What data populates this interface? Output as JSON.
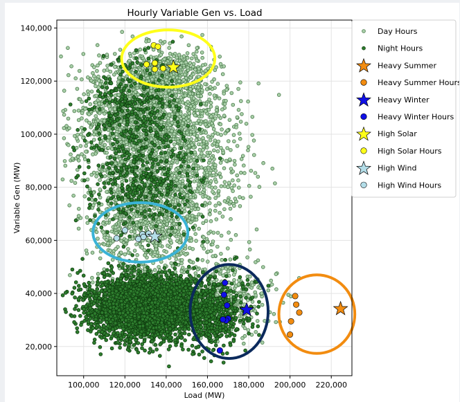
{
  "colors": {
    "day_fill": "#a9cfa9",
    "day_edge": "#4a7a4a",
    "night_fill": "#2e7d2e",
    "night_edge": "#0f3d0f",
    "summer": "#f28c10",
    "winter": "#1010e6",
    "solar": "#ffff1a",
    "wind": "#b3dde8",
    "winter_ring": "#0b2a5c",
    "wind_ring": "#3ab3d6",
    "grid": "#e3e3e3"
  },
  "chart_data": {
    "type": "scatter",
    "title": "Hourly Variable Gen vs. Load",
    "xlabel": "Load (MW)",
    "ylabel": "Variable Gen (MW)",
    "xlim": [
      87000,
      230000
    ],
    "ylim": [
      9000,
      143000
    ],
    "x_tick_labels": [
      "100,000",
      "120,000",
      "140,000",
      "160,000",
      "180,000",
      "200,000",
      "220,000"
    ],
    "x_tick_values": [
      100000,
      120000,
      140000,
      160000,
      180000,
      200000,
      220000
    ],
    "y_tick_labels": [
      "20,000",
      "40,000",
      "60,000",
      "80,000",
      "100,000",
      "120,000",
      "140,000"
    ],
    "y_tick_values": [
      20000,
      40000,
      60000,
      80000,
      100000,
      120000,
      140000
    ],
    "grid": true,
    "legend_position": "outside-right",
    "legend": [
      {
        "label": "Day Hours",
        "marker": "circle-small",
        "color_key": "day_fill",
        "edge_key": "day_edge"
      },
      {
        "label": "Night Hours",
        "marker": "circle-small",
        "color_key": "night_fill",
        "edge_key": "night_edge"
      },
      {
        "label": "Heavy Summer",
        "marker": "star",
        "color_key": "summer"
      },
      {
        "label": "Heavy Summer Hours",
        "marker": "circle",
        "color_key": "summer"
      },
      {
        "label": "Heavy Winter",
        "marker": "star",
        "color_key": "winter"
      },
      {
        "label": "Heavy Winter Hours",
        "marker": "circle",
        "color_key": "winter"
      },
      {
        "label": "High Solar",
        "marker": "star",
        "color_key": "solar"
      },
      {
        "label": "High Solar Hours",
        "marker": "circle",
        "color_key": "solar"
      },
      {
        "label": "High Wind",
        "marker": "star",
        "color_key": "wind"
      },
      {
        "label": "High Wind Hours",
        "marker": "circle",
        "color_key": "wind"
      }
    ],
    "clusters": {
      "day": [
        {
          "cx": 128000,
          "cy": 103000,
          "sx": 16000,
          "sy": 13000,
          "n": 1500
        },
        {
          "cx": 140000,
          "cy": 121000,
          "sx": 11000,
          "sy": 6000,
          "n": 500
        },
        {
          "cx": 152000,
          "cy": 92000,
          "sx": 14000,
          "sy": 17000,
          "n": 700
        },
        {
          "cx": 130000,
          "cy": 68000,
          "sx": 15000,
          "sy": 8500,
          "n": 700
        },
        {
          "cx": 168000,
          "cy": 40000,
          "sx": 12000,
          "sy": 8000,
          "n": 350
        },
        {
          "cx": 135000,
          "cy": 40000,
          "sx": 14000,
          "sy": 8000,
          "n": 300
        }
      ],
      "night": [
        {
          "cx": 130000,
          "cy": 35000,
          "sx": 13500,
          "sy": 6000,
          "n": 3200
        },
        {
          "cx": 162000,
          "cy": 32000,
          "sx": 9000,
          "sy": 6500,
          "n": 500
        },
        {
          "cx": 128000,
          "cy": 82000,
          "sx": 13000,
          "sy": 11000,
          "n": 400
        },
        {
          "cx": 125000,
          "cy": 110000,
          "sx": 11000,
          "sy": 9000,
          "n": 300
        }
      ]
    },
    "stars": [
      {
        "name": "Heavy Summer",
        "x": 224500,
        "y": 34200,
        "color_key": "summer"
      },
      {
        "name": "Heavy Winter",
        "x": 179000,
        "y": 33800,
        "color_key": "winter"
      },
      {
        "name": "High Solar",
        "x": 143500,
        "y": 125200,
        "color_key": "solar"
      },
      {
        "name": "High Wind",
        "x": 134500,
        "y": 61500,
        "color_key": "wind"
      }
    ],
    "hour_points": [
      {
        "series": "Heavy Summer Hours",
        "color_key": "summer",
        "points": [
          [
            202500,
            39000
          ],
          [
            203000,
            35800
          ],
          [
            204500,
            32800
          ],
          [
            200500,
            29500
          ],
          [
            200000,
            24500
          ]
        ]
      },
      {
        "series": "Heavy Winter Hours",
        "color_key": "winter",
        "points": [
          [
            168500,
            44000
          ],
          [
            168000,
            39500
          ],
          [
            169500,
            35500
          ],
          [
            170000,
            30500
          ],
          [
            169000,
            29800
          ],
          [
            167500,
            30200
          ],
          [
            166000,
            18500
          ]
        ]
      },
      {
        "series": "High Solar Hours",
        "color_key": "solar",
        "points": [
          [
            134000,
            133500
          ],
          [
            136000,
            133000
          ],
          [
            134500,
            126800
          ],
          [
            130500,
            126300
          ],
          [
            134500,
            124500
          ],
          [
            138500,
            124800
          ]
        ]
      },
      {
        "series": "High Wind Hours",
        "color_key": "wind",
        "points": [
          [
            120000,
            63800
          ],
          [
            116000,
            60800
          ],
          [
            126500,
            60500
          ],
          [
            128500,
            62300
          ],
          [
            131500,
            62500
          ],
          [
            129000,
            61300
          ]
        ]
      }
    ],
    "rings": [
      {
        "name": "High Solar",
        "cx": 141000,
        "cy": 128500,
        "rx": 22600,
        "ry": 10800,
        "color_key": "solar"
      },
      {
        "name": "High Wind",
        "cx": 127500,
        "cy": 63000,
        "rx": 23000,
        "ry": 11200,
        "color_key": "wind_ring"
      },
      {
        "name": "Heavy Winter",
        "cx": 170500,
        "cy": 33200,
        "rx": 18900,
        "ry": 17700,
        "color_key": "winter_ring"
      },
      {
        "name": "Heavy Summer",
        "cx": 213000,
        "cy": 32200,
        "rx": 18400,
        "ry": 14800,
        "color_key": "summer"
      }
    ]
  }
}
